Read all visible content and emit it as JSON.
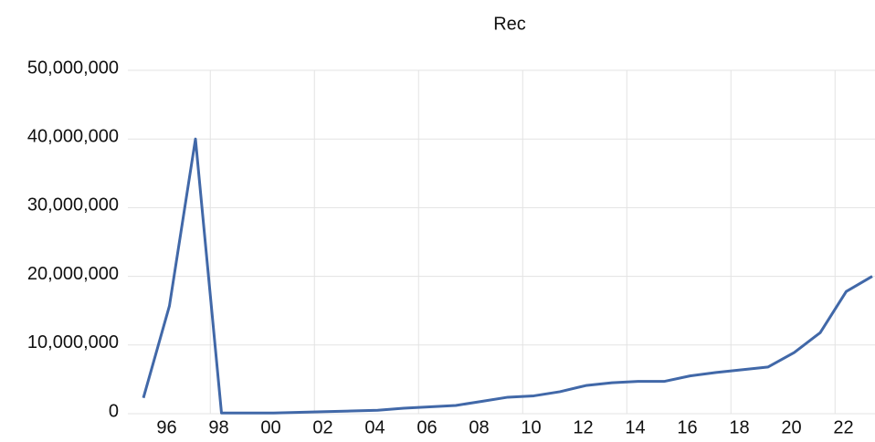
{
  "chart_data": {
    "type": "line",
    "title": "Rec",
    "categories": [
      null,
      "96",
      null,
      "98",
      null,
      "00",
      null,
      "02",
      null,
      "04",
      null,
      "06",
      null,
      "08",
      null,
      "10",
      null,
      "12",
      null,
      "14",
      null,
      "16",
      null,
      "18",
      null,
      "20",
      null,
      "22",
      null
    ],
    "series": [
      {
        "name": "Rec",
        "color": "#4168a8",
        "values": [
          2300000,
          15700000,
          40000000,
          100000,
          100000,
          100000,
          200000,
          300000,
          400000,
          500000,
          800000,
          1000000,
          1200000,
          1800000,
          2400000,
          2600000,
          3200000,
          4100000,
          4500000,
          4700000,
          4700000,
          5500000,
          6000000,
          6400000,
          6800000,
          8900000,
          11800000,
          17800000,
          20000000
        ]
      }
    ],
    "ylim": [
      0,
      50000000
    ],
    "yticks": [
      0,
      {
        "value": 10000000,
        "label": "10,000,000"
      },
      {
        "value": 20000000,
        "label": "20,000,000"
      },
      {
        "value": 30000000,
        "label": "30,000,000"
      },
      {
        "value": 40000000,
        "label": "40,000,000"
      },
      {
        "value": 50000000,
        "label": "50,000,000"
      }
    ],
    "grid": true
  }
}
